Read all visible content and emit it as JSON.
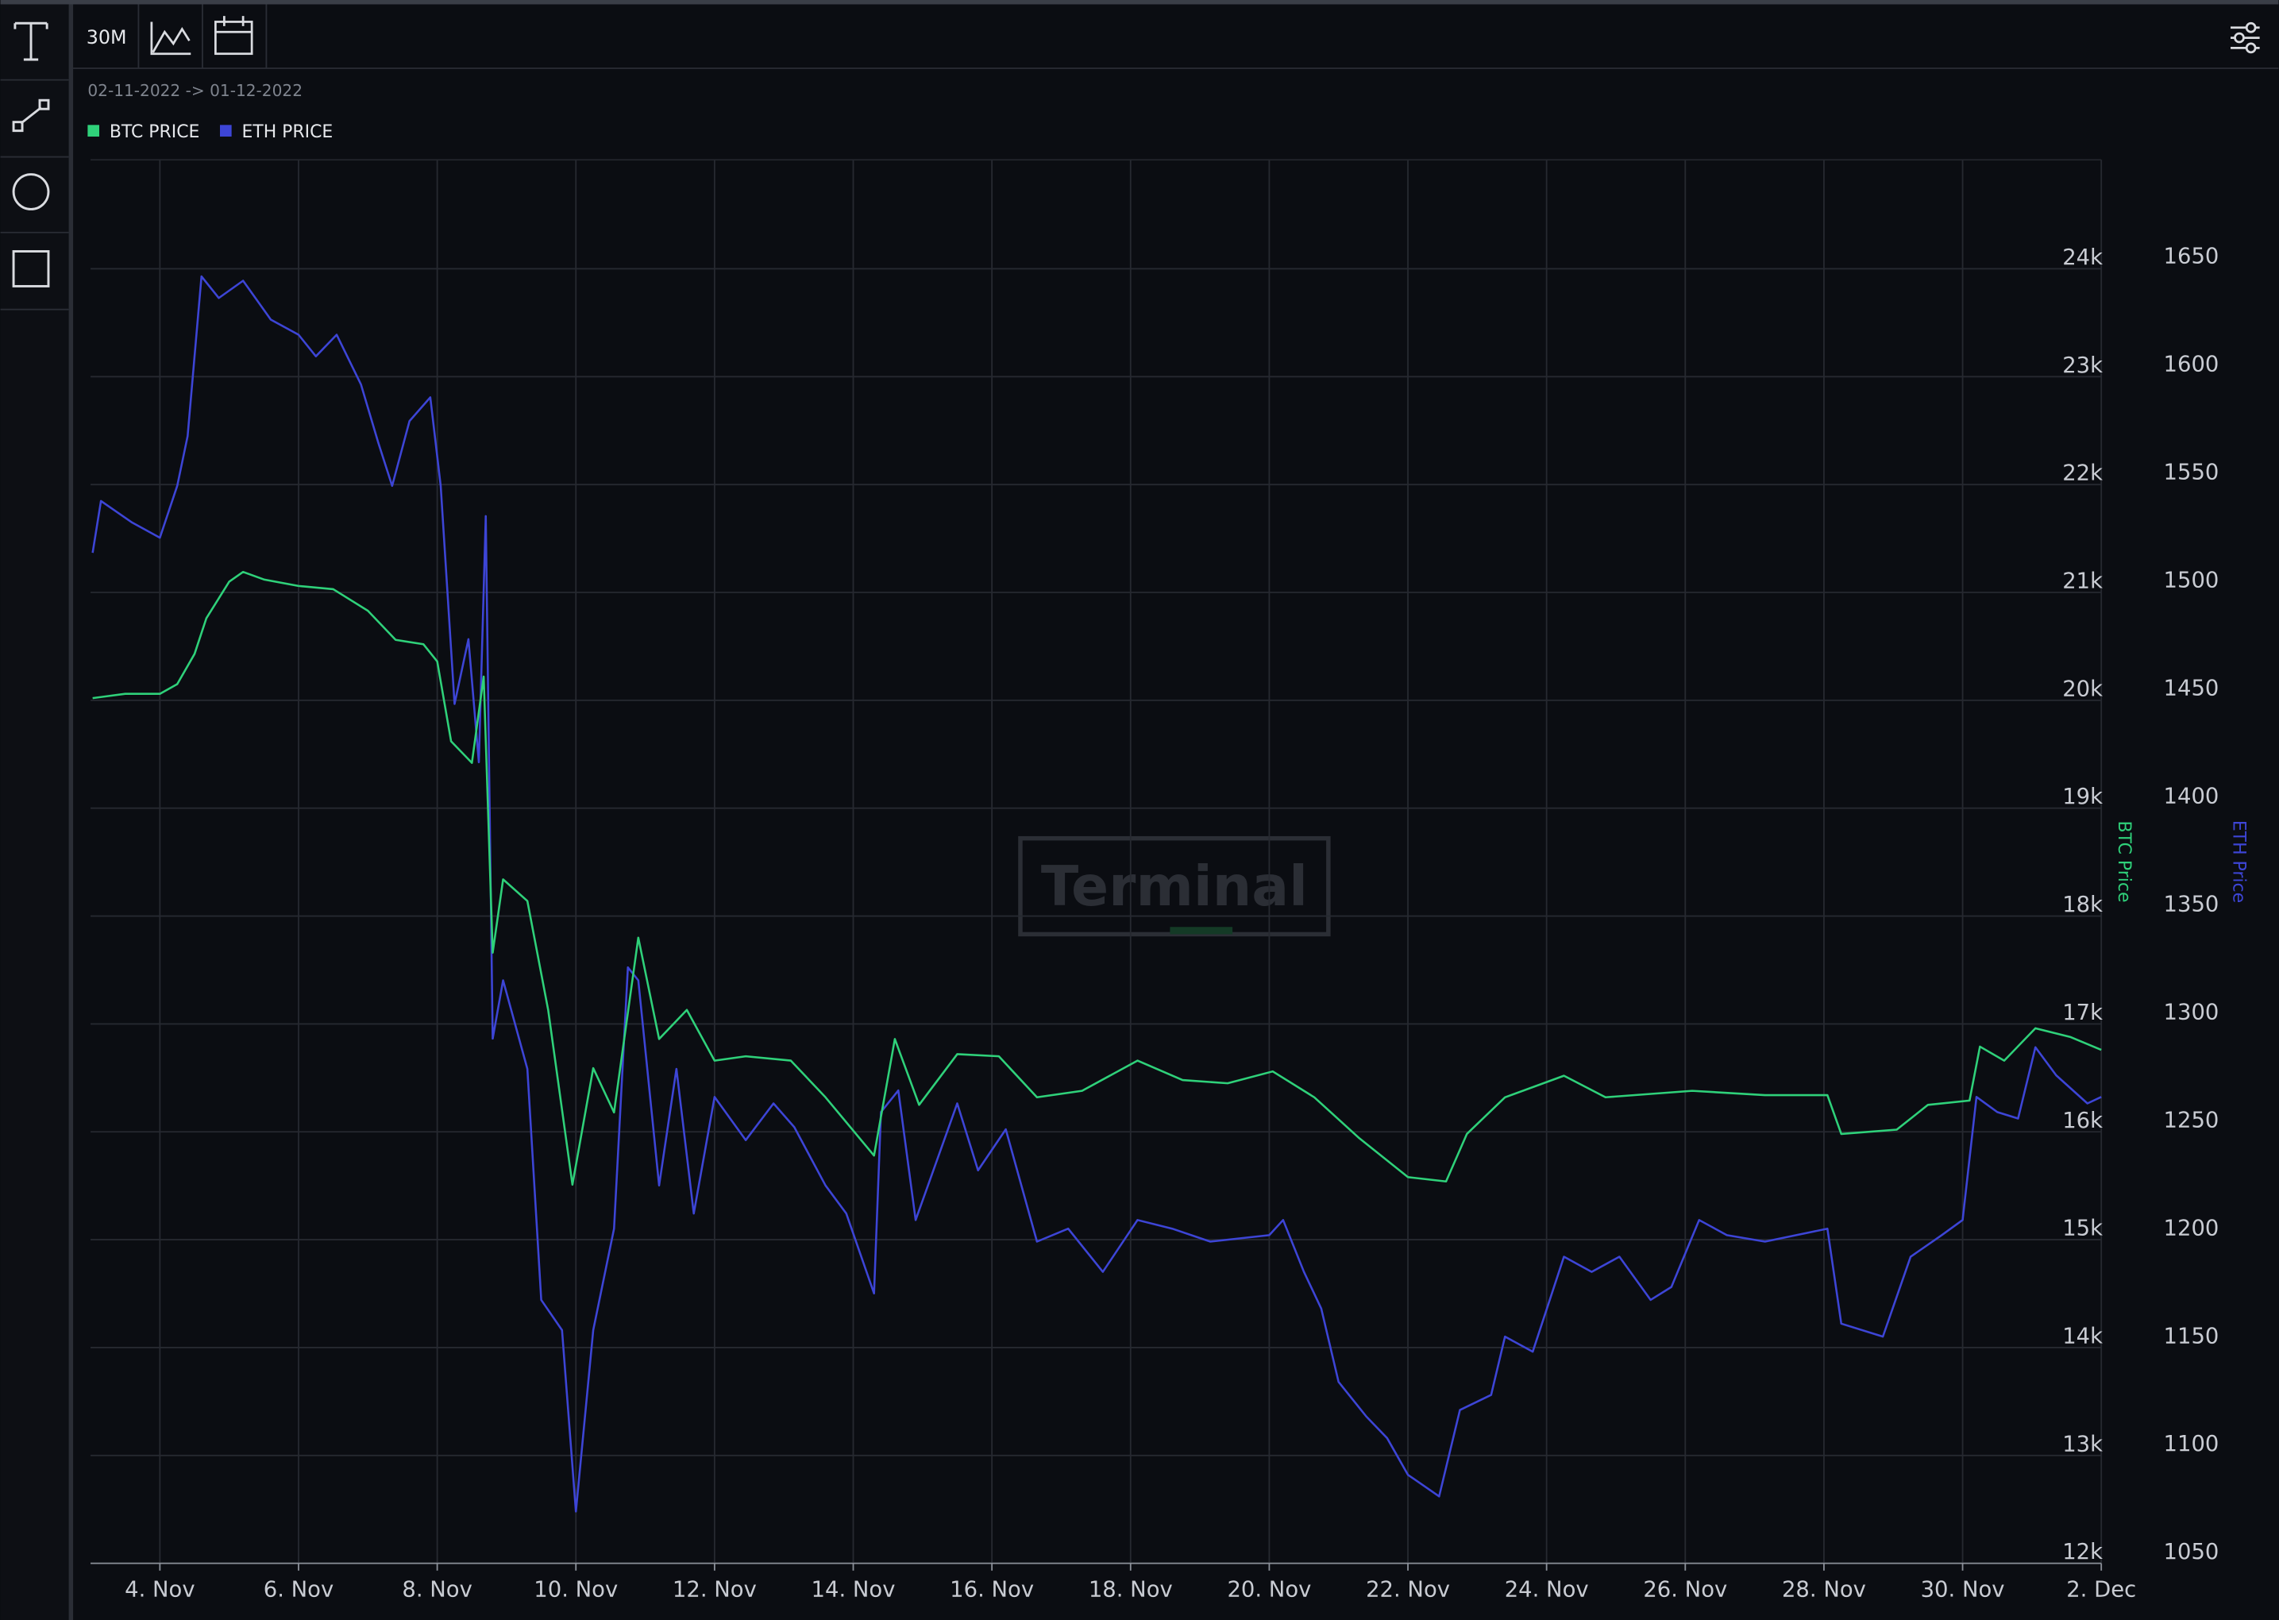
{
  "toolbar": {
    "interval": "30M"
  },
  "date_range": "02-11-2022 -> 01-12-2022",
  "watermark": "Terminal",
  "chart_data": {
    "type": "line",
    "xlim": [
      3,
      32
    ],
    "xticks": [
      {
        "value": 4,
        "label": "4. Nov"
      },
      {
        "value": 6,
        "label": "6. Nov"
      },
      {
        "value": 8,
        "label": "8. Nov"
      },
      {
        "value": 10,
        "label": "10. Nov"
      },
      {
        "value": 12,
        "label": "12. Nov"
      },
      {
        "value": 14,
        "label": "14. Nov"
      },
      {
        "value": 16,
        "label": "16. Nov"
      },
      {
        "value": 18,
        "label": "18. Nov"
      },
      {
        "value": 20,
        "label": "20. Nov"
      },
      {
        "value": 22,
        "label": "22. Nov"
      },
      {
        "value": 24,
        "label": "24. Nov"
      },
      {
        "value": 26,
        "label": "26. Nov"
      },
      {
        "value": 28,
        "label": "28. Nov"
      },
      {
        "value": 30,
        "label": "30. Nov"
      },
      {
        "value": 32,
        "label": "2. Dec"
      }
    ],
    "ylabel": "BTC Price",
    "ylim": [
      12000,
      25010
    ],
    "yticks": [
      {
        "value": 12000,
        "label": "12k"
      },
      {
        "value": 13000,
        "label": "13k"
      },
      {
        "value": 14000,
        "label": "14k"
      },
      {
        "value": 15000,
        "label": "15k"
      },
      {
        "value": 16000,
        "label": "16k"
      },
      {
        "value": 17000,
        "label": "17k"
      },
      {
        "value": 18000,
        "label": "18k"
      },
      {
        "value": 19000,
        "label": "19k"
      },
      {
        "value": 20000,
        "label": "20k"
      },
      {
        "value": 21000,
        "label": "21k"
      },
      {
        "value": 22000,
        "label": "22k"
      },
      {
        "value": 23000,
        "label": "23k"
      },
      {
        "value": 24000,
        "label": "24k"
      }
    ],
    "y2label": "ETH Price",
    "y2lim": [
      1050,
      1700
    ],
    "y2ticks": [
      1050,
      1100,
      1150,
      1200,
      1250,
      1300,
      1350,
      1400,
      1450,
      1500,
      1550,
      1600,
      1650
    ],
    "grid": true,
    "series": [
      {
        "name": "BTC PRICE",
        "color": "#2fd17a",
        "x": [
          3.03,
          3.5,
          4,
          4.25,
          4.5,
          4.67,
          5,
          5.2,
          5.5,
          6,
          6.5,
          7,
          7.4,
          7.8,
          8,
          8.2,
          8.5,
          8.67,
          8.8,
          8.95,
          9.3,
          9.6,
          9.95,
          10.25,
          10.55,
          10.9,
          11.2,
          11.6,
          12,
          12.45,
          13.1,
          13.6,
          14.3,
          14.6,
          14.95,
          15.5,
          16.1,
          16.65,
          17.3,
          18.1,
          18.75,
          19.4,
          20.05,
          20.65,
          21.3,
          22,
          22.55,
          22.85,
          23.4,
          24.25,
          24.85,
          26.1,
          27.15,
          28.05,
          28.25,
          29.05,
          29.5,
          30.1,
          30.25,
          30.6,
          31.05,
          31.55,
          32
        ],
        "values": [
          20020,
          20060,
          20060,
          20150,
          20430,
          20760,
          21100,
          21190,
          21120,
          21060,
          21030,
          20830,
          20560,
          20520,
          20360,
          19620,
          19420,
          20220,
          17660,
          18340,
          18140,
          17130,
          15510,
          16590,
          16180,
          17800,
          16860,
          17130,
          16660,
          16700,
          16660,
          16320,
          15780,
          16860,
          16250,
          16720,
          16700,
          16320,
          16380,
          16660,
          16480,
          16450,
          16560,
          16320,
          15940,
          15580,
          15540,
          15980,
          16320,
          16520,
          16320,
          16380,
          16340,
          16340,
          15980,
          16020,
          16250,
          16290,
          16790,
          16660,
          16960,
          16880,
          16760
        ]
      },
      {
        "name": "ETH PRICE",
        "color": "#3d45d6",
        "axis": "y2",
        "x": [
          3.03,
          3.15,
          3.6,
          4,
          4.25,
          4.4,
          4.6,
          4.85,
          5.2,
          5.6,
          6,
          6.25,
          6.55,
          6.9,
          7.15,
          7.35,
          7.6,
          7.9,
          8.05,
          8.25,
          8.45,
          8.6,
          8.7,
          8.8,
          8.95,
          9.3,
          9.5,
          9.8,
          10,
          10.25,
          10.55,
          10.75,
          10.9,
          11.2,
          11.45,
          11.7,
          12,
          12.45,
          12.85,
          13.15,
          13.6,
          13.9,
          14.3,
          14.4,
          14.65,
          14.9,
          15.5,
          15.8,
          16.2,
          16.65,
          17.1,
          17.6,
          18.1,
          18.6,
          19.15,
          20,
          20.2,
          20.5,
          20.75,
          21,
          21.4,
          21.7,
          22,
          22.45,
          22.75,
          23.2,
          23.4,
          23.8,
          24.25,
          24.65,
          25.05,
          25.5,
          25.8,
          26.2,
          26.6,
          27.15,
          28.05,
          28.25,
          28.85,
          29.25,
          29.7,
          30,
          30.2,
          30.5,
          30.8,
          31.05,
          31.35,
          31.8,
          32
        ],
        "values": [
          1518,
          1542,
          1532,
          1525,
          1549,
          1572,
          1646,
          1636,
          1644,
          1626,
          1619,
          1609,
          1619,
          1596,
          1569,
          1549,
          1579,
          1590,
          1549,
          1448,
          1478,
          1421,
          1535,
          1293,
          1320,
          1279,
          1172,
          1158,
          1074,
          1158,
          1205,
          1326,
          1320,
          1225,
          1279,
          1212,
          1266,
          1246,
          1263,
          1252,
          1225,
          1212,
          1175,
          1259,
          1269,
          1209,
          1263,
          1232,
          1251,
          1199,
          1205,
          1185,
          1209,
          1205,
          1199,
          1202,
          1209,
          1185,
          1168,
          1134,
          1118,
          1108,
          1091,
          1081,
          1121,
          1128,
          1155,
          1148,
          1192,
          1185,
          1192,
          1172,
          1178,
          1209,
          1202,
          1199,
          1205,
          1161,
          1155,
          1192,
          1202,
          1209,
          1266,
          1259,
          1256,
          1289,
          1276,
          1263,
          1266
        ]
      }
    ]
  }
}
